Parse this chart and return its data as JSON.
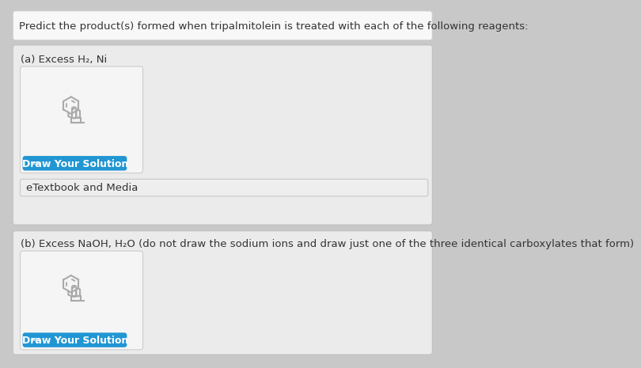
{
  "title": "Predict the product(s) formed when tripalmitolein is treated with each of the following reagents:",
  "title_fontsize": 9.5,
  "title_color": "#333333",
  "section_a_label": "(a) Excess H₂, Ni",
  "section_b_label": "(b) Excess NaOH, H₂O (do not draw the sodium ions and draw just one of the three identical carboxylates that form)",
  "button_color": "#2196d3",
  "button_text": "  •  Draw Your Solution",
  "button_text_color": "#ffffff",
  "button_fontsize": 9,
  "label_fontsize": 9.5,
  "etextbook_text": "eTextbook and Media",
  "etextbook_fontsize": 9.5,
  "outer_bg": "#c8c8c8",
  "panel_bg": "#ebebeb",
  "draw_box_bg": "#f5f5f5",
  "header_bg": "#f8f8f8",
  "etextbook_bg": "#eeeeee",
  "icon_color": "#aaaaaa"
}
